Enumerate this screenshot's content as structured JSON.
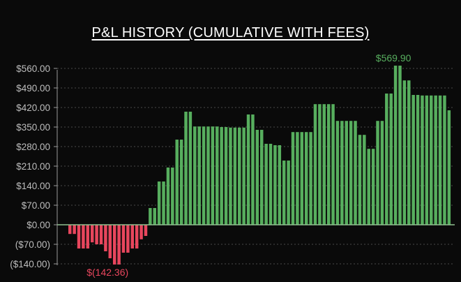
{
  "chart_data": {
    "type": "bar",
    "title": "P&L HISTORY (CUMULATIVE WITH FEES)",
    "xlabel": "",
    "ylabel": "",
    "ylim": [
      -142.36,
      569.9
    ],
    "y_ticks": [
      560,
      490,
      420,
      350,
      280,
      210,
      140,
      70,
      0,
      -70,
      -140
    ],
    "y_tick_labels": [
      "$560.00",
      "$490.00",
      "$420.00",
      "$350.00",
      "$280.00",
      "$210.00",
      "$140.00",
      "$70.00",
      "$0.00",
      "($70.00)",
      "($140.00)"
    ],
    "grid": true,
    "values": [
      -33,
      -33,
      -85,
      -85,
      -85,
      -63,
      -70,
      -70,
      -95,
      -120,
      -142.36,
      -142.36,
      -100,
      -100,
      -85,
      -85,
      -52,
      -40,
      60,
      60,
      155,
      155,
      205,
      205,
      305,
      305,
      405,
      405,
      352,
      352,
      352,
      352,
      352,
      352,
      350,
      350,
      348,
      348,
      348,
      348,
      395,
      395,
      340,
      340,
      290,
      290,
      285,
      285,
      230,
      230,
      332,
      332,
      332,
      332,
      332,
      432,
      432,
      432,
      432,
      432,
      372,
      372,
      372,
      372,
      372,
      322,
      322,
      272,
      272,
      372,
      372,
      470,
      470,
      569.9,
      569.9,
      517,
      517,
      465,
      465,
      463,
      463,
      463,
      463,
      463,
      463,
      410
    ],
    "colors": {
      "positive": "#57ae5e",
      "negative": "#e8465d"
    },
    "annotations": [
      {
        "label": "$569.90",
        "value": 569.9,
        "kind": "max"
      },
      {
        "label": "$(142.36)",
        "value": -142.36,
        "kind": "min"
      }
    ]
  }
}
